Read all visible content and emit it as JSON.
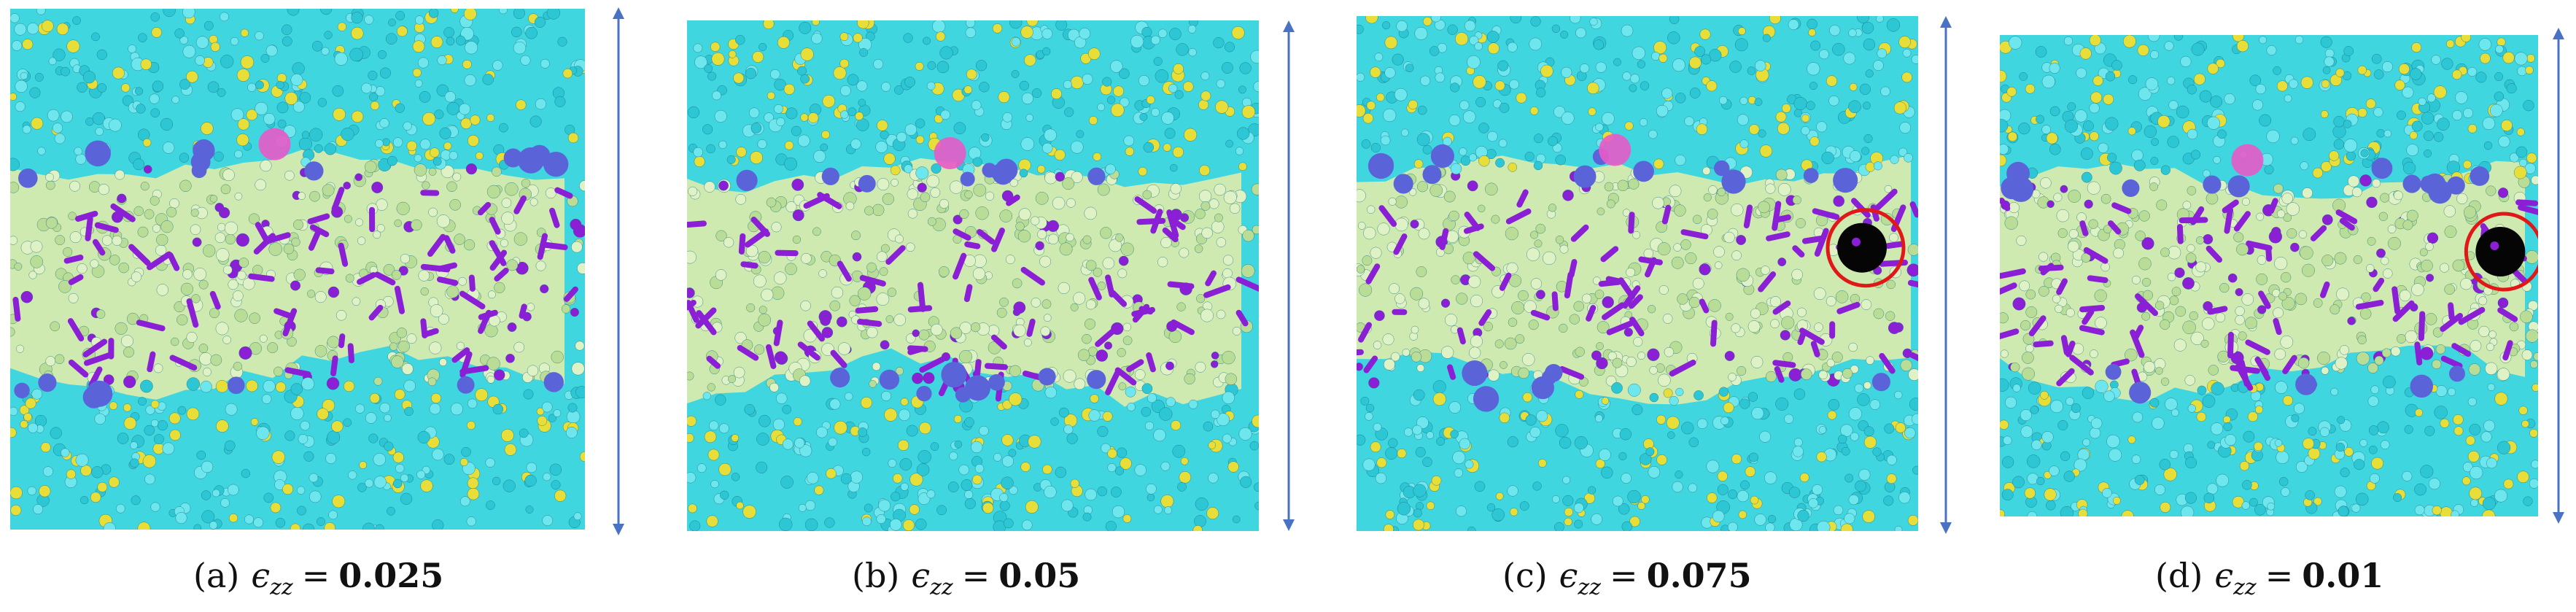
{
  "figure": {
    "panels": [
      {
        "tag": "(a)",
        "symbol": "ϵ",
        "subscript": "zz",
        "relation": "=",
        "value": "0.025",
        "void": false
      },
      {
        "tag": "(b)",
        "symbol": "ϵ",
        "subscript": "zz",
        "relation": "=",
        "value": "0.05",
        "void": false
      },
      {
        "tag": "(c)",
        "symbol": "ϵ",
        "subscript": "zz",
        "relation": "=",
        "value": "0.075",
        "void": true
      },
      {
        "tag": "(d)",
        "symbol": "ϵ",
        "subscript": "zz",
        "relation": "=",
        "value": "0.01",
        "void": true
      }
    ],
    "colors": {
      "matrix_cyan": "#3fd6e0",
      "matrix_yellow": "#e8de3a",
      "band_green": "#cfeab0",
      "defect_purple": "#8a1fd6",
      "cluster_blue": "#5b63d8",
      "pink": "#e85ac8",
      "void": "#050505",
      "void_circle": "#e01818",
      "arrow": "#4a72c4"
    }
  }
}
